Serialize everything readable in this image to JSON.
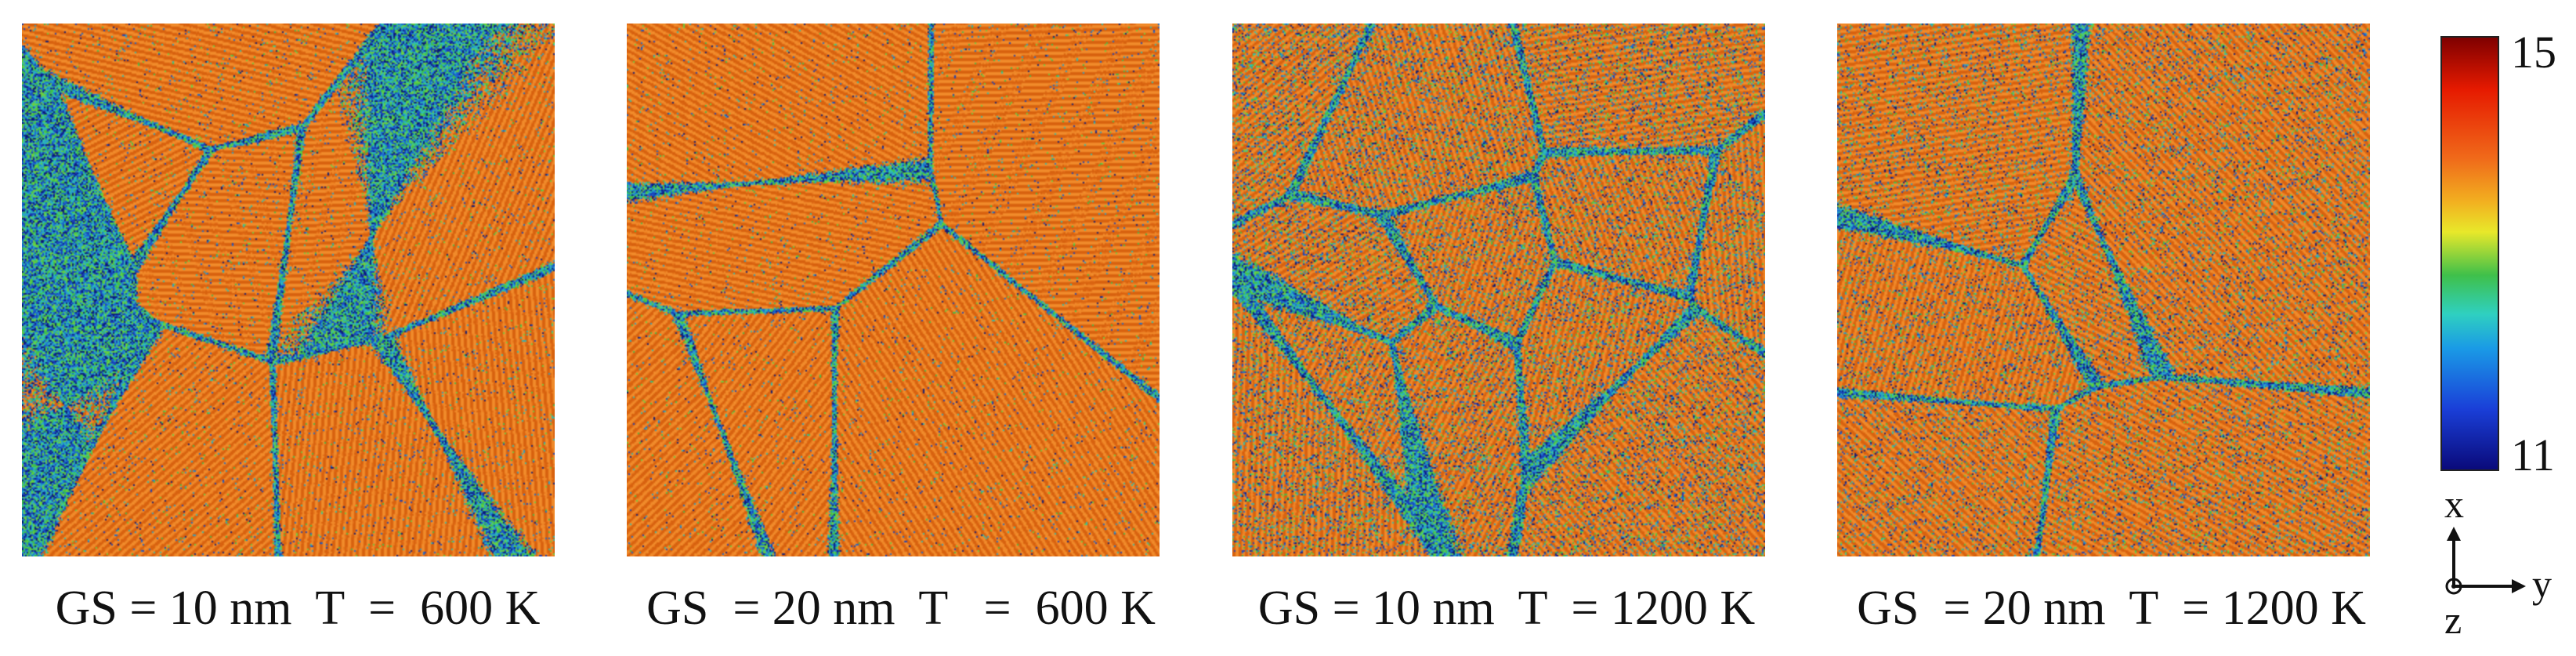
{
  "panels": [
    {
      "id": "p1",
      "caption": "GS = 10 nm  T  =  600 K",
      "grain_size_nm": 10,
      "temperature_K": 600
    },
    {
      "id": "p2",
      "caption": "GS  = 20 nm  T   =  600 K",
      "grain_size_nm": 20,
      "temperature_K": 600
    },
    {
      "id": "p3",
      "caption": "GS = 10 nm  T  = 1200 K",
      "grain_size_nm": 10,
      "temperature_K": 1200
    },
    {
      "id": "p4",
      "caption": "GS  = 20 nm  T  = 1200 K",
      "grain_size_nm": 20,
      "temperature_K": 1200
    }
  ],
  "colorbar": {
    "max_label": "15",
    "min_label": "11"
  },
  "axes": {
    "x_label": "x",
    "y_label": "y",
    "z_label": "z"
  },
  "colors": {
    "grain": "#e0701a",
    "boundary_low": "#10208a",
    "boundary_mid": "#2fb0c8",
    "boundary_hi": "#3fc04a"
  }
}
